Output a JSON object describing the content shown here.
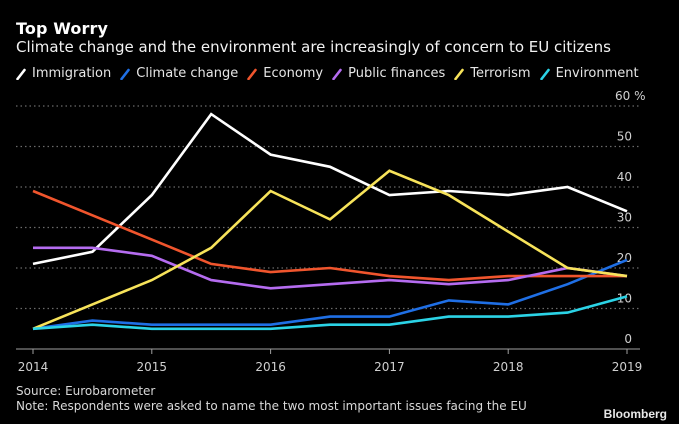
{
  "header": {
    "title": "Top Worry",
    "subtitle": "Climate change and the environment are increasingly of concern to EU citizens"
  },
  "footer": {
    "source": "Source: Eurobarometer",
    "note": "Note: Respondents were asked to name the two most important issues facing the EU",
    "brand": "Bloomberg"
  },
  "chart_data": {
    "type": "line",
    "title": "Top Worry",
    "subtitle": "Climate change and the environment are increasingly of concern to EU citizens",
    "xlabel": "",
    "ylabel": "%",
    "x": [
      2014,
      2014.5,
      2015,
      2015.5,
      2016,
      2016.5,
      2017,
      2017.5,
      2018,
      2018.5,
      2019
    ],
    "x_ticks": [
      "2014",
      "2015",
      "2016",
      "2017",
      "2018",
      "2019"
    ],
    "x_tick_values": [
      2014,
      2015,
      2016,
      2017,
      2018,
      2019
    ],
    "y_ticks": [
      "0",
      "10",
      "20",
      "30",
      "40",
      "50",
      "60 %"
    ],
    "y_tick_values": [
      0,
      10,
      20,
      30,
      40,
      50,
      60
    ],
    "ylim": [
      0,
      60
    ],
    "xlim": [
      2014,
      2019
    ],
    "grid": true,
    "y_axis_side": "right",
    "legend_position": "top-left",
    "series": [
      {
        "name": "Immigration",
        "color": "#ffffff",
        "values": [
          21,
          24,
          38,
          58,
          48,
          45,
          38,
          39,
          38,
          40,
          34
        ]
      },
      {
        "name": "Climate change",
        "color": "#1f6fe5",
        "values": [
          5,
          7,
          6,
          6,
          6,
          8,
          8,
          12,
          11,
          16,
          22
        ]
      },
      {
        "name": "Economy",
        "color": "#f0552d",
        "values": [
          39,
          33,
          27,
          21,
          19,
          20,
          18,
          17,
          18,
          18,
          18
        ]
      },
      {
        "name": "Public finances",
        "color": "#b56cf0",
        "values": [
          25,
          25,
          23,
          17,
          15,
          16,
          17,
          16,
          17,
          20,
          18
        ]
      },
      {
        "name": "Terrorism",
        "color": "#f7e35a",
        "values": [
          5,
          11,
          17,
          25,
          39,
          32,
          44,
          38,
          29,
          20,
          18
        ]
      },
      {
        "name": "Environment",
        "color": "#2bd3e6",
        "values": [
          5,
          6,
          5,
          5,
          5,
          6,
          6,
          8,
          8,
          9,
          13
        ]
      }
    ]
  }
}
